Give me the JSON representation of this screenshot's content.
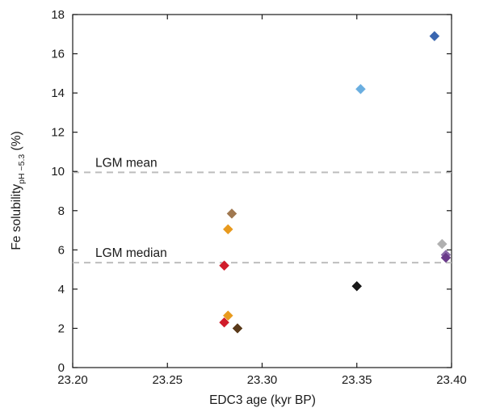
{
  "chart_data": {
    "type": "scatter",
    "title": "",
    "xlabel": "EDC3 age (kyr BP)",
    "ylabel": {
      "main": "Fe solubility",
      "subscript": "pH ~5.3",
      "unit": " (%)"
    },
    "xlim": [
      23.2,
      23.4
    ],
    "ylim": [
      0,
      18
    ],
    "x_ticks": [
      23.2,
      23.25,
      23.3,
      23.35,
      23.4
    ],
    "x_tick_labels": [
      "23.20",
      "23.25",
      "23.30",
      "23.35",
      "23.40"
    ],
    "y_ticks": [
      0,
      2,
      4,
      6,
      8,
      10,
      12,
      14,
      16,
      18
    ],
    "y_tick_labels": [
      "0",
      "2",
      "4",
      "6",
      "8",
      "10",
      "12",
      "14",
      "16",
      "18"
    ],
    "grid": false,
    "marker": "diamond",
    "reference_lines": [
      {
        "label": "LGM mean",
        "y": 9.95,
        "color": "#bdbdbd",
        "style": "dashed"
      },
      {
        "label": "LGM median",
        "y": 5.35,
        "color": "#bdbdbd",
        "style": "dashed"
      }
    ],
    "points": [
      {
        "x": 23.391,
        "y": 16.9,
        "color": "#3a66b0"
      },
      {
        "x": 23.352,
        "y": 14.2,
        "color": "#6aaee0"
      },
      {
        "x": 23.284,
        "y": 7.85,
        "color": "#a07850"
      },
      {
        "x": 23.282,
        "y": 7.05,
        "color": "#e89a1e"
      },
      {
        "x": 23.395,
        "y": 6.3,
        "color": "#b0b0b0"
      },
      {
        "x": 23.397,
        "y": 5.75,
        "color": "#8a6aa8"
      },
      {
        "x": 23.397,
        "y": 5.6,
        "color": "#6a3a8a"
      },
      {
        "x": 23.28,
        "y": 5.2,
        "color": "#d01c2a"
      },
      {
        "x": 23.35,
        "y": 4.15,
        "color": "#1a1a1a"
      },
      {
        "x": 23.282,
        "y": 2.65,
        "color": "#e89a1e"
      },
      {
        "x": 23.28,
        "y": 2.3,
        "color": "#d01c2a"
      },
      {
        "x": 23.287,
        "y": 2.0,
        "color": "#5a3a1a"
      }
    ]
  }
}
